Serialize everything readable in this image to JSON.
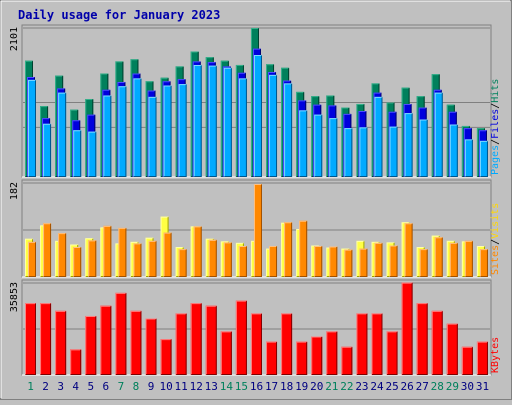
{
  "chart_data": {
    "type": "bar",
    "title": "Daily usage for January 2023",
    "x": [
      "1",
      "2",
      "3",
      "4",
      "5",
      "6",
      "7",
      "8",
      "9",
      "10",
      "11",
      "12",
      "13",
      "14",
      "15",
      "16",
      "17",
      "18",
      "19",
      "20",
      "21",
      "22",
      "23",
      "24",
      "25",
      "26",
      "27",
      "28",
      "29",
      "30",
      "31"
    ],
    "weekend_days": [
      "1",
      "7",
      "8",
      "14",
      "15",
      "21",
      "22",
      "28",
      "29"
    ],
    "panels": [
      {
        "name": "top",
        "ymax": 2101,
        "ymax_label": "2101",
        "axis_labels": [
          {
            "text": "Pages",
            "color": "#00aaff"
          },
          {
            "text": "/",
            "color": "#000000"
          },
          {
            "text": "Files",
            "color": "#0000dd"
          },
          {
            "text": "/",
            "color": "#000000"
          },
          {
            "text": "Hits",
            "color": "#00805c"
          }
        ],
        "series": [
          {
            "name": "Hits",
            "color": "#00805c",
            "values": [
              1640,
              1000,
              1430,
              950,
              1100,
              1460,
              1630,
              1660,
              1350,
              1400,
              1560,
              1770,
              1690,
              1640,
              1580,
              2101,
              1590,
              1540,
              1200,
              1140,
              1150,
              980,
              1030,
              1320,
              1050,
              1260,
              1140,
              1450,
              1020,
              720,
              690
            ]
          },
          {
            "name": "Files",
            "color": "#0000dd",
            "values": [
              1410,
              830,
              1250,
              800,
              880,
              1230,
              1340,
              1460,
              1220,
              1350,
              1380,
              1630,
              1620,
              1560,
              1470,
              1810,
              1480,
              1360,
              1080,
              1020,
              1010,
              890,
              930,
              1190,
              920,
              1030,
              980,
              1230,
              920,
              690,
              660
            ]
          },
          {
            "name": "Pages",
            "color": "#00aaff",
            "values": [
              1370,
              750,
              1190,
              660,
              640,
              1150,
              1280,
              1390,
              1130,
              1290,
              1310,
              1580,
              1570,
              1540,
              1390,
              1720,
              1440,
              1320,
              940,
              880,
              830,
              690,
              700,
              1130,
              710,
              900,
              810,
              1190,
              740,
              530,
              510
            ]
          }
        ]
      },
      {
        "name": "middle",
        "ymax": 182,
        "ymax_label": "182",
        "axis_labels": [
          {
            "text": "Sites",
            "color": "#ff8800"
          },
          {
            "text": "/",
            "color": "#000000"
          },
          {
            "text": "Visits",
            "color": "#ffd700"
          }
        ],
        "series": [
          {
            "name": "Visits",
            "color": "#ffff44",
            "values": [
              74,
              100,
              70,
              63,
              75,
              96,
              65,
              68,
              76,
              117,
              58,
              98,
              74,
              69,
              66,
              70,
              55,
              105,
              93,
              61,
              57,
              55,
              70,
              68,
              67,
              106,
              58,
              80,
              70,
              69,
              60
            ]
          },
          {
            "name": "Sites",
            "color": "#ff8800",
            "values": [
              68,
              104,
              85,
              58,
              71,
              99,
              95,
              65,
              70,
              86,
              54,
              98,
              72,
              67,
              60,
              180,
              60,
              106,
              109,
              60,
              59,
              53,
              55,
              66,
              61,
              104,
              54,
              77,
              66,
              70,
              54
            ]
          }
        ]
      },
      {
        "name": "bottom",
        "ymax": 35853,
        "ymax_label": "35853",
        "axis_labels": [
          {
            "text": "KBytes",
            "color": "#ff0000"
          }
        ],
        "series": [
          {
            "name": "KBytes",
            "color": "#ff0000",
            "values": [
              28000,
              28000,
              25000,
              10000,
              23000,
              27000,
              32000,
              25000,
              22000,
              14000,
              24000,
              28000,
              27000,
              17000,
              29000,
              24000,
              13000,
              24000,
              13000,
              15000,
              17000,
              11000,
              24000,
              24000,
              17000,
              36000,
              28000,
              25000,
              20000,
              11000,
              13000
            ]
          }
        ]
      }
    ]
  }
}
